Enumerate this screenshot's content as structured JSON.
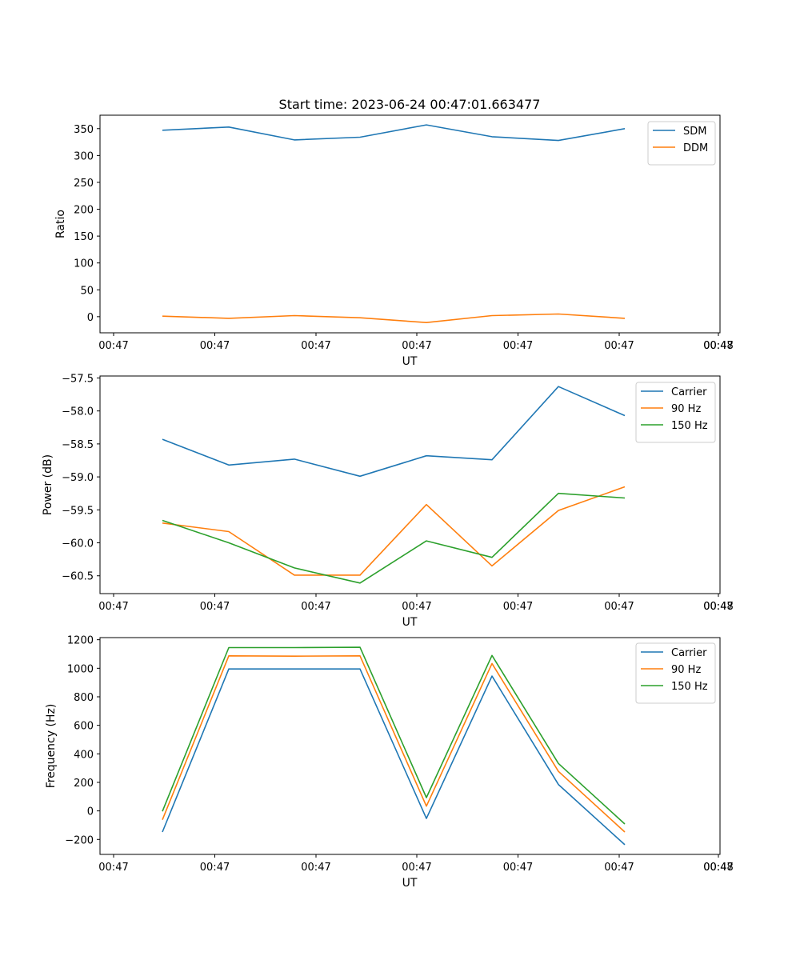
{
  "chart_data": [
    {
      "type": "line",
      "title": "Start time: 2023-06-24 00:47:01.663477",
      "xlabel": "UT",
      "ylabel": "Ratio",
      "xticks": [
        "00:47",
        "00:47",
        "00:47",
        "00:47",
        "00:47",
        "00:47",
        "00:47",
        "00:48"
      ],
      "yticks": [
        0,
        50,
        100,
        150,
        200,
        250,
        300,
        350
      ],
      "ylim": [
        -30,
        375
      ],
      "legend_position": "top-right",
      "series": [
        {
          "name": "SDM",
          "color": "#1f77b4",
          "values": [
            347,
            353,
            329,
            334,
            357,
            335,
            328,
            350
          ]
        },
        {
          "name": "DDM",
          "color": "#ff7f0e",
          "values": [
            1,
            -3,
            2,
            -2,
            -11,
            2,
            5,
            -3
          ]
        }
      ]
    },
    {
      "type": "line",
      "title": "",
      "xlabel": "UT",
      "ylabel": "Power (dB)",
      "xticks": [
        "00:47",
        "00:47",
        "00:47",
        "00:47",
        "00:47",
        "00:47",
        "00:47",
        "00:48"
      ],
      "yticks": [
        "−57.5",
        "−58.0",
        "−58.5",
        "−59.0",
        "−59.5",
        "−60.0",
        "−60.5"
      ],
      "ylim": [
        -60.77,
        -57.47
      ],
      "legend_position": "top-right",
      "series": [
        {
          "name": "Carrier",
          "color": "#1f77b4",
          "values": [
            -58.43,
            -58.82,
            -58.73,
            -58.99,
            -58.68,
            -58.74,
            -57.63,
            -58.07
          ]
        },
        {
          "name": "90 Hz",
          "color": "#ff7f0e",
          "values": [
            -59.7,
            -59.83,
            -60.49,
            -60.49,
            -59.42,
            -60.35,
            -59.51,
            -59.15
          ]
        },
        {
          "name": "150 Hz",
          "color": "#2ca02c",
          "values": [
            -59.66,
            -60.0,
            -60.38,
            -60.61,
            -59.97,
            -60.22,
            -59.25,
            -59.32
          ]
        }
      ]
    },
    {
      "type": "line",
      "title": "",
      "xlabel": "UT",
      "ylabel": "Frequency (Hz)",
      "xticks": [
        "00:47",
        "00:47",
        "00:47",
        "00:47",
        "00:47",
        "00:47",
        "00:47",
        "00:48"
      ],
      "yticks": [
        "−200",
        "0",
        "200",
        "400",
        "600",
        "800",
        "1000",
        "1200"
      ],
      "ylim": [
        -305,
        1215
      ],
      "legend_position": "top-right",
      "series": [
        {
          "name": "Carrier",
          "color": "#1f77b4",
          "values": [
            -148,
            995,
            995,
            995,
            -53,
            945,
            185,
            -237
          ]
        },
        {
          "name": "90 Hz",
          "color": "#ff7f0e",
          "values": [
            -62,
            1087,
            1085,
            1087,
            33,
            1033,
            277,
            -148
          ]
        },
        {
          "name": "150 Hz",
          "color": "#2ca02c",
          "values": [
            -3,
            1145,
            1145,
            1147,
            93,
            1090,
            333,
            -92
          ]
        }
      ]
    }
  ]
}
